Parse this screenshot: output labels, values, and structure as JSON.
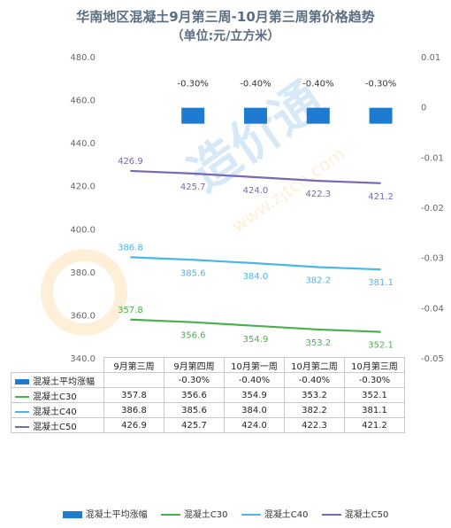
{
  "title": "华南地区混凝土9月第三周-10月第三周第价格趋势",
  "subtitle": "（单位:元/立方米）",
  "watermark": "造价通 www.zjtcn.com",
  "colors": {
    "bar": "#1f7bcf",
    "c30": "#4caf50",
    "c40": "#4db6e8",
    "c50": "#7a68b0"
  },
  "chart_data": {
    "type": "bar",
    "categories": [
      "9月第三周",
      "9月第四周",
      "10月第一周",
      "10月第二周",
      "10月第三周"
    ],
    "left_axis": {
      "ylim": [
        340,
        480
      ],
      "ticks": [
        "340.0",
        "360.0",
        "380.0",
        "400.0",
        "420.0",
        "440.0",
        "460.0",
        "480.0"
      ]
    },
    "right_axis": {
      "ylim": [
        -0.05,
        0.01
      ],
      "ticks": [
        "-0.05",
        "-0.04",
        "-0.03",
        "-0.02",
        "-0.01",
        "0",
        "0.01"
      ]
    },
    "series": [
      {
        "name": "混凝土平均涨幅",
        "type": "bar",
        "axis": "right",
        "values": [
          null,
          -0.003,
          -0.004,
          -0.004,
          -0.003
        ],
        "labels": [
          "",
          "-0.30%",
          "-0.40%",
          "-0.40%",
          "-0.30%"
        ]
      },
      {
        "name": "混凝土C30",
        "type": "line",
        "axis": "left",
        "values": [
          357.8,
          356.6,
          354.9,
          353.2,
          352.1
        ],
        "labels": [
          "357.8",
          "356.6",
          "354.9",
          "353.2",
          "352.1"
        ]
      },
      {
        "name": "混凝土C40",
        "type": "line",
        "axis": "left",
        "values": [
          386.8,
          385.6,
          384.0,
          382.2,
          381.1
        ],
        "labels": [
          "386.8",
          "385.6",
          "384.0",
          "382.2",
          "381.1"
        ]
      },
      {
        "name": "混凝土C50",
        "type": "line",
        "axis": "left",
        "values": [
          426.9,
          425.7,
          424.0,
          422.3,
          421.2
        ],
        "labels": [
          "426.9",
          "425.7",
          "424.0",
          "422.3",
          "421.2"
        ]
      }
    ]
  },
  "table": {
    "header": [
      "9月第三周",
      "9月第四周",
      "10月第一周",
      "10月第二周",
      "10月第三周"
    ],
    "rows": [
      {
        "name": "混凝土平均涨幅",
        "cells": [
          "",
          "-0.30%",
          "-0.40%",
          "-0.40%",
          "-0.30%"
        ]
      },
      {
        "name": "混凝土C30",
        "cells": [
          "357.8",
          "356.6",
          "354.9",
          "353.2",
          "352.1"
        ]
      },
      {
        "name": "混凝土C40",
        "cells": [
          "386.8",
          "385.6",
          "384.0",
          "382.2",
          "381.1"
        ]
      },
      {
        "name": "混凝土C50",
        "cells": [
          "426.9",
          "425.7",
          "424.0",
          "422.3",
          "421.2"
        ]
      }
    ]
  },
  "legend": [
    "混凝土平均涨幅",
    "混凝土C30",
    "混凝土C40",
    "混凝土C50"
  ]
}
